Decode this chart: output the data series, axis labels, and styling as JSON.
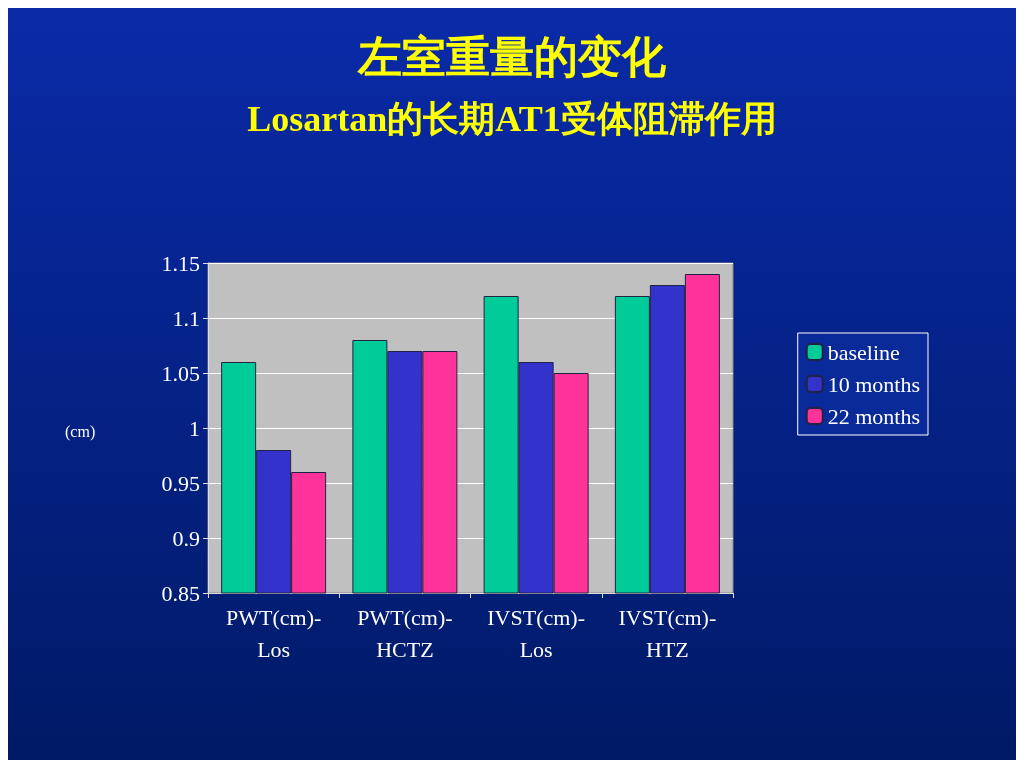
{
  "chart_data": {
    "type": "bar",
    "title": "左室重量的变化",
    "subtitle": "Losartan的长期AT1受体阻滞作用",
    "ylabel": "(cm)",
    "categories": [
      "PWT(cm)-Los",
      "PWT(cm)-HCTZ",
      "IVST(cm)-Los",
      "IVST(cm)-HTZ"
    ],
    "series": [
      {
        "name": "baseline",
        "color": "#00cc99",
        "values": [
          1.06,
          1.08,
          1.12,
          1.12
        ]
      },
      {
        "name": "10 months",
        "color": "#3333cc",
        "values": [
          0.98,
          1.07,
          1.06,
          1.13
        ]
      },
      {
        "name": "22 months",
        "color": "#ff3399",
        "values": [
          0.96,
          1.07,
          1.05,
          1.14
        ]
      }
    ],
    "ylim": [
      0.85,
      1.15
    ],
    "yticks": [
      0.85,
      0.9,
      0.95,
      1,
      1.05,
      1.1,
      1.15
    ],
    "grid": "y",
    "legend": "right"
  }
}
